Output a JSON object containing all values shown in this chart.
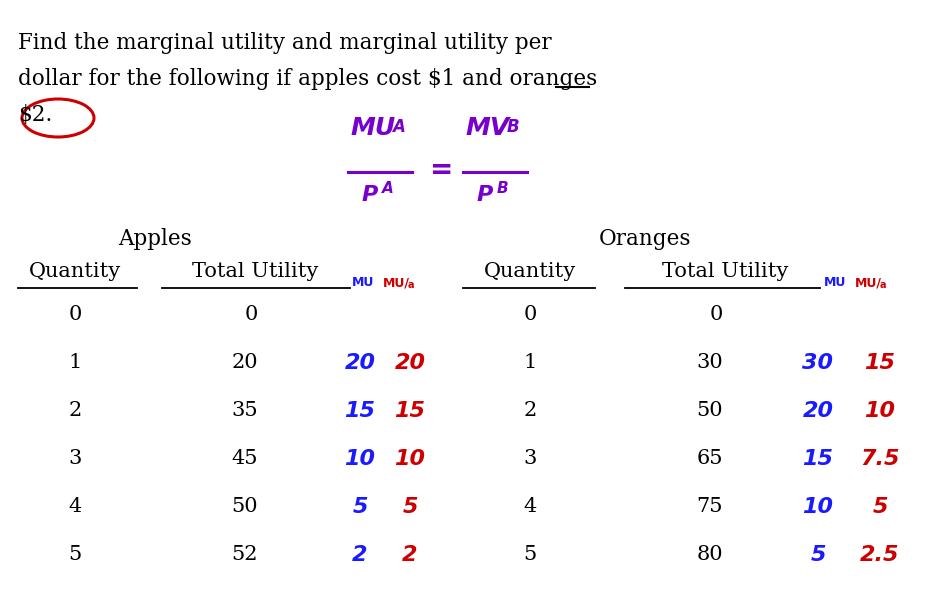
{
  "title_line1": "Find the marginal utility and marginal utility per",
  "title_line2": "dollar for the following if apples cost $1 and oranges",
  "title_line3": "$2.",
  "apples_header": "Apples",
  "oranges_header": "Oranges",
  "apple_qty": [
    0,
    1,
    2,
    3,
    4,
    5
  ],
  "apple_total_utility": [
    0,
    20,
    35,
    45,
    50,
    52
  ],
  "apple_mu": [
    "",
    "20",
    "15",
    "10",
    "5",
    "2"
  ],
  "apple_mu_per_dollar": [
    "",
    "20",
    "15",
    "10",
    "5",
    "2"
  ],
  "orange_qty": [
    0,
    1,
    2,
    3,
    4,
    5
  ],
  "orange_total_utility": [
    0,
    30,
    50,
    65,
    75,
    80
  ],
  "orange_mu": [
    "",
    "30",
    "20",
    "15",
    "10",
    "5"
  ],
  "orange_mu_per_dollar": [
    "",
    "15",
    "10",
    "7.5",
    "5",
    "2.5"
  ],
  "bg_color": "#ffffff",
  "text_color": "#000000",
  "blue_color": "#1a1aff",
  "red_color": "#cc0000",
  "purple_color": "#7700cc",
  "circle_color": "#cc0000",
  "fig_width": 9.33,
  "fig_height": 6.11,
  "dpi": 100
}
